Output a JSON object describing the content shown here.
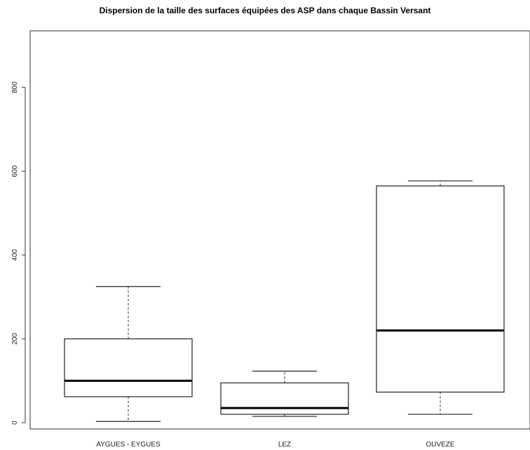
{
  "chart_data": {
    "type": "boxplot",
    "title": "Dispersion de la taille des surfaces équipées des ASP dans chaque Bassin Versant",
    "xlabel": "",
    "ylabel": "",
    "ylim": [
      -15,
      935
    ],
    "yticks": [
      0,
      200,
      400,
      600,
      800
    ],
    "grid": false,
    "categories": [
      "AYGUES - EYGUES",
      "LEZ",
      "OUVEZE"
    ],
    "boxes": [
      {
        "category": "AYGUES - EYGUES",
        "whisker_low": 3,
        "q1": 62,
        "median": 100,
        "q3": 200,
        "whisker_high": 325
      },
      {
        "category": "LEZ",
        "whisker_low": 15,
        "q1": 20,
        "median": 35,
        "q3": 95,
        "whisker_high": 123
      },
      {
        "category": "OUVEZE",
        "whisker_low": 20,
        "q1": 73,
        "median": 220,
        "q3": 565,
        "whisker_high": 577
      }
    ]
  }
}
